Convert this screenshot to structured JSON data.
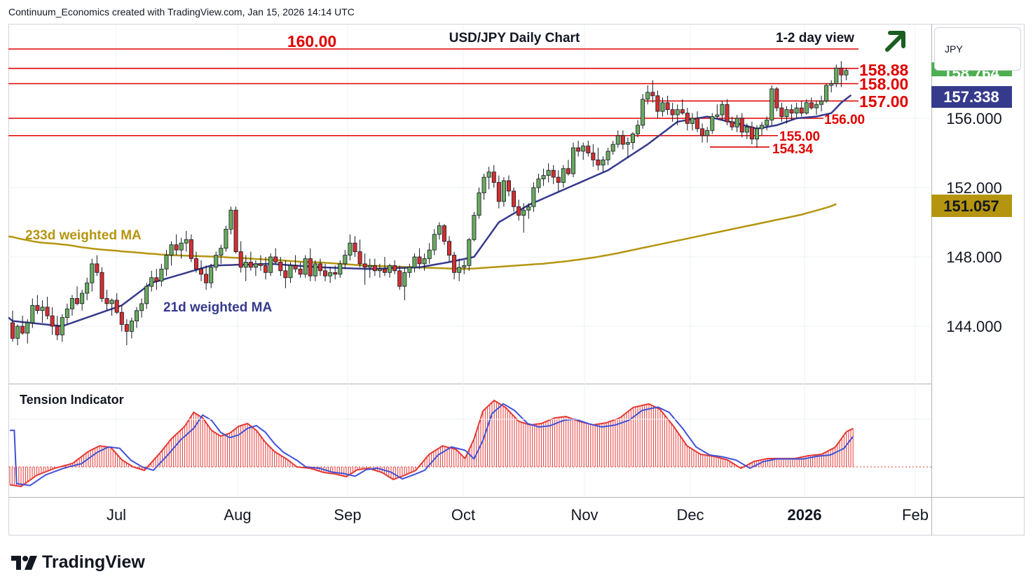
{
  "header": {
    "attribution": "Continuum_Economics created with TradingView.com, Jan 15, 2026 14:14 UTC",
    "brand": "TradingView"
  },
  "chart_data": {
    "type": "candlestick",
    "title": "USD/JPY Daily Chart",
    "subtitle": "1-2 day view",
    "currency": "JPY",
    "x_ticks": [
      "Jul",
      "Aug",
      "Sep",
      "Oct",
      "Nov",
      "Dec",
      "2026",
      "Feb"
    ],
    "y_ticks": [
      "144.000",
      "148.000",
      "152.000",
      "156.000"
    ],
    "y_range": [
      141.6,
      163.2
    ],
    "price_badges": [
      {
        "value": "158.764",
        "color": "#4caf50",
        "partially_hidden": true
      },
      {
        "value": "157.338",
        "color": "#363a8c"
      },
      {
        "value": "151.057",
        "color": "#b5950f"
      }
    ],
    "levels": [
      {
        "label": "160.00",
        "value": 160.0
      },
      {
        "label": "158.88",
        "value": 158.88
      },
      {
        "label": "158.00",
        "value": 158.0
      },
      {
        "label": "157.00",
        "value": 157.0
      },
      {
        "label": "156.00",
        "value": 156.0
      },
      {
        "label": "155.00",
        "value": 155.0
      },
      {
        "label": "154.34",
        "value": 154.34
      }
    ],
    "series": [
      {
        "name": "233d weighted MA",
        "color": "#b5950f"
      },
      {
        "name": "21d weighted MA",
        "color": "#363a8c"
      }
    ],
    "ohlc": [
      [
        144.2,
        144.9,
        143.1,
        143.3
      ],
      [
        143.3,
        144.1,
        142.9,
        144.0
      ],
      [
        144.0,
        144.6,
        143.5,
        143.6
      ],
      [
        143.6,
        144.4,
        143.0,
        144.2
      ],
      [
        144.2,
        145.6,
        143.9,
        145.2
      ],
      [
        145.2,
        145.8,
        144.7,
        144.9
      ],
      [
        144.9,
        145.5,
        144.2,
        145.1
      ],
      [
        145.1,
        145.7,
        144.4,
        144.6
      ],
      [
        144.6,
        145.1,
        143.5,
        144.0
      ],
      [
        144.0,
        144.6,
        143.2,
        143.5
      ],
      [
        143.5,
        144.7,
        143.1,
        144.5
      ],
      [
        144.5,
        145.3,
        144.1,
        145.0
      ],
      [
        145.0,
        145.8,
        144.6,
        145.6
      ],
      [
        145.6,
        146.3,
        145.2,
        145.3
      ],
      [
        145.3,
        146.1,
        144.9,
        145.9
      ],
      [
        145.9,
        146.8,
        145.5,
        146.5
      ],
      [
        146.5,
        147.9,
        146.0,
        147.6
      ],
      [
        147.6,
        148.1,
        146.9,
        147.1
      ],
      [
        147.1,
        147.4,
        145.4,
        145.6
      ],
      [
        145.6,
        146.1,
        144.9,
        145.3
      ],
      [
        145.3,
        145.6,
        144.6,
        145.5
      ],
      [
        145.5,
        145.9,
        144.7,
        144.8
      ],
      [
        144.8,
        145.2,
        143.7,
        144.1
      ],
      [
        144.1,
        144.4,
        142.9,
        143.7
      ],
      [
        143.7,
        144.5,
        143.3,
        144.3
      ],
      [
        144.3,
        145.1,
        143.9,
        144.9
      ],
      [
        144.9,
        145.6,
        144.5,
        145.3
      ],
      [
        145.3,
        146.5,
        145.0,
        146.3
      ],
      [
        146.3,
        147.2,
        146.0,
        146.8
      ],
      [
        146.8,
        147.3,
        146.1,
        146.6
      ],
      [
        146.6,
        147.6,
        146.3,
        147.3
      ],
      [
        147.3,
        148.4,
        146.9,
        148.1
      ],
      [
        148.1,
        148.9,
        147.5,
        148.7
      ],
      [
        148.7,
        149.3,
        148.1,
        148.4
      ],
      [
        148.4,
        149.1,
        147.9,
        148.8
      ],
      [
        148.8,
        149.5,
        148.3,
        149.0
      ],
      [
        149.0,
        149.3,
        147.7,
        147.9
      ],
      [
        147.9,
        148.3,
        147.1,
        147.3
      ],
      [
        147.3,
        147.8,
        146.6,
        147.0
      ],
      [
        147.0,
        147.5,
        146.1,
        146.5
      ],
      [
        146.5,
        147.6,
        146.2,
        147.4
      ],
      [
        147.4,
        148.3,
        147.2,
        148.1
      ],
      [
        148.1,
        148.7,
        147.6,
        148.5
      ],
      [
        148.5,
        149.8,
        148.3,
        149.6
      ],
      [
        149.6,
        150.9,
        149.3,
        150.7
      ],
      [
        150.7,
        150.9,
        148.2,
        148.3
      ],
      [
        148.3,
        148.9,
        147.1,
        147.4
      ],
      [
        147.4,
        148.1,
        146.6,
        147.7
      ],
      [
        147.7,
        148.3,
        147.2,
        147.4
      ],
      [
        147.4,
        147.8,
        146.9,
        147.6
      ],
      [
        147.6,
        148.1,
        147.2,
        147.5
      ],
      [
        147.5,
        148.0,
        146.7,
        147.1
      ],
      [
        147.1,
        148.2,
        146.9,
        148.0
      ],
      [
        148.0,
        148.5,
        147.6,
        147.7
      ],
      [
        147.7,
        148.0,
        146.9,
        147.2
      ],
      [
        147.2,
        147.8,
        146.2,
        146.8
      ],
      [
        146.8,
        147.7,
        146.5,
        147.5
      ],
      [
        147.5,
        148.1,
        147.1,
        147.3
      ],
      [
        147.3,
        147.7,
        146.8,
        147.0
      ],
      [
        147.0,
        148.1,
        146.8,
        147.9
      ],
      [
        147.9,
        148.5,
        146.6,
        146.9
      ],
      [
        146.9,
        147.8,
        146.6,
        147.6
      ],
      [
        147.6,
        147.9,
        146.9,
        147.2
      ],
      [
        147.2,
        147.6,
        146.6,
        146.9
      ],
      [
        146.9,
        147.4,
        146.5,
        147.1
      ],
      [
        147.1,
        147.5,
        146.7,
        147.0
      ],
      [
        147.0,
        147.8,
        146.8,
        147.6
      ],
      [
        147.6,
        148.4,
        147.3,
        148.1
      ],
      [
        148.1,
        149.3,
        147.8,
        148.8
      ],
      [
        148.8,
        149.2,
        148.0,
        148.3
      ],
      [
        148.3,
        149.0,
        147.4,
        147.6
      ],
      [
        147.6,
        148.2,
        146.4,
        147.4
      ],
      [
        147.4,
        147.9,
        146.8,
        147.5
      ],
      [
        147.5,
        147.9,
        146.9,
        147.2
      ],
      [
        147.2,
        147.6,
        146.8,
        147.3
      ],
      [
        147.3,
        148.0,
        146.9,
        147.1
      ],
      [
        147.1,
        147.6,
        146.8,
        147.5
      ],
      [
        147.5,
        147.8,
        147.0,
        147.2
      ],
      [
        147.2,
        147.5,
        146.1,
        146.3
      ],
      [
        146.3,
        147.4,
        145.5,
        147.1
      ],
      [
        147.1,
        147.6,
        146.8,
        147.4
      ],
      [
        147.4,
        148.2,
        147.1,
        148.0
      ],
      [
        148.0,
        148.5,
        147.3,
        147.6
      ],
      [
        147.6,
        148.2,
        147.2,
        147.9
      ],
      [
        147.9,
        148.8,
        147.6,
        148.4
      ],
      [
        148.4,
        149.6,
        148.1,
        149.3
      ],
      [
        149.3,
        150.0,
        149.0,
        149.8
      ],
      [
        149.8,
        149.9,
        148.7,
        148.9
      ],
      [
        148.9,
        149.2,
        147.7,
        148.1
      ],
      [
        148.1,
        148.3,
        146.7,
        147.1
      ],
      [
        147.1,
        147.9,
        146.6,
        147.4
      ],
      [
        147.4,
        147.8,
        147.0,
        147.5
      ],
      [
        147.5,
        149.1,
        147.2,
        149.0
      ],
      [
        149.0,
        150.6,
        148.9,
        150.4
      ],
      [
        150.4,
        152.0,
        150.2,
        151.7
      ],
      [
        151.7,
        152.8,
        151.3,
        152.6
      ],
      [
        152.6,
        153.2,
        151.9,
        152.9
      ],
      [
        152.9,
        153.3,
        152.0,
        152.3
      ],
      [
        152.3,
        152.7,
        150.8,
        151.2
      ],
      [
        151.2,
        152.6,
        150.9,
        152.4
      ],
      [
        152.4,
        152.7,
        151.5,
        151.8
      ],
      [
        151.8,
        152.0,
        150.6,
        150.9
      ],
      [
        150.9,
        151.3,
        150.1,
        150.4
      ],
      [
        150.4,
        151.1,
        149.4,
        150.7
      ],
      [
        150.7,
        151.1,
        150.2,
        150.9
      ],
      [
        150.9,
        152.3,
        150.6,
        152.0
      ],
      [
        152.0,
        152.8,
        151.7,
        152.5
      ],
      [
        152.5,
        153.1,
        152.1,
        152.7
      ],
      [
        152.7,
        153.4,
        152.3,
        153.0
      ],
      [
        153.0,
        153.3,
        152.2,
        152.6
      ],
      [
        152.6,
        153.0,
        151.8,
        152.3
      ],
      [
        152.3,
        153.3,
        152.0,
        153.1
      ],
      [
        153.1,
        153.6,
        152.7,
        152.8
      ],
      [
        152.8,
        154.6,
        152.6,
        154.3
      ],
      [
        154.3,
        154.7,
        153.8,
        154.1
      ],
      [
        154.1,
        154.6,
        153.6,
        154.4
      ],
      [
        154.4,
        154.7,
        153.8,
        154.0
      ],
      [
        154.0,
        154.5,
        153.2,
        153.6
      ],
      [
        153.6,
        154.3,
        153.0,
        153.3
      ],
      [
        153.3,
        153.8,
        152.9,
        153.6
      ],
      [
        153.6,
        154.3,
        153.3,
        154.1
      ],
      [
        154.1,
        154.7,
        153.9,
        154.5
      ],
      [
        154.5,
        155.3,
        154.3,
        155.0
      ],
      [
        155.0,
        155.3,
        154.2,
        154.5
      ],
      [
        154.5,
        154.9,
        153.7,
        154.6
      ],
      [
        154.6,
        155.2,
        154.2,
        155.1
      ],
      [
        155.1,
        155.9,
        154.9,
        155.6
      ],
      [
        155.6,
        157.4,
        155.4,
        157.1
      ],
      [
        157.1,
        157.9,
        156.8,
        157.5
      ],
      [
        157.5,
        158.2,
        156.9,
        157.3
      ],
      [
        157.3,
        157.6,
        156.0,
        156.4
      ],
      [
        156.4,
        157.2,
        156.1,
        156.9
      ],
      [
        156.9,
        157.3,
        156.2,
        156.5
      ],
      [
        156.5,
        156.9,
        155.8,
        156.2
      ],
      [
        156.2,
        156.8,
        155.6,
        156.5
      ],
      [
        156.5,
        157.1,
        156.2,
        156.3
      ],
      [
        156.3,
        156.6,
        155.3,
        155.7
      ],
      [
        155.7,
        156.3,
        155.3,
        156.0
      ],
      [
        156.0,
        156.4,
        155.2,
        155.4
      ],
      [
        155.4,
        155.7,
        154.6,
        155.0
      ],
      [
        155.0,
        155.5,
        154.6,
        155.3
      ],
      [
        155.3,
        156.3,
        155.1,
        156.1
      ],
      [
        156.1,
        156.8,
        156.0,
        156.2
      ],
      [
        156.2,
        157.0,
        155.9,
        156.8
      ],
      [
        156.8,
        157.1,
        155.6,
        155.8
      ],
      [
        155.8,
        156.1,
        155.3,
        155.5
      ],
      [
        155.5,
        156.2,
        155.2,
        156.0
      ],
      [
        156.0,
        156.3,
        154.9,
        155.2
      ],
      [
        155.2,
        155.7,
        154.8,
        155.5
      ],
      [
        155.5,
        155.8,
        154.5,
        154.8
      ],
      [
        154.8,
        155.6,
        154.3,
        155.4
      ],
      [
        155.4,
        155.8,
        155.0,
        155.6
      ],
      [
        155.6,
        156.1,
        155.3,
        155.9
      ],
      [
        155.9,
        157.9,
        155.6,
        157.7
      ],
      [
        157.7,
        157.8,
        156.4,
        156.6
      ],
      [
        156.6,
        156.9,
        155.8,
        156.1
      ],
      [
        156.1,
        156.7,
        155.7,
        156.5
      ],
      [
        156.5,
        156.8,
        155.9,
        156.3
      ],
      [
        156.3,
        156.9,
        156.0,
        156.6
      ],
      [
        156.6,
        157.0,
        156.1,
        156.3
      ],
      [
        156.3,
        157.1,
        156.2,
        156.9
      ],
      [
        156.9,
        157.2,
        156.5,
        156.6
      ],
      [
        156.6,
        157.0,
        156.2,
        156.8
      ],
      [
        156.8,
        157.3,
        156.4,
        157.0
      ],
      [
        157.0,
        158.0,
        156.9,
        157.9
      ],
      [
        157.9,
        158.2,
        157.5,
        158.0
      ],
      [
        158.0,
        159.1,
        157.8,
        158.9
      ],
      [
        158.9,
        159.3,
        157.8,
        158.5
      ],
      [
        158.5,
        158.9,
        158.2,
        158.76
      ]
    ],
    "ma233": [
      149.15,
      149.08,
      149.02,
      148.96,
      148.9,
      148.86,
      148.82,
      148.8,
      148.78,
      148.75,
      148.72,
      148.69,
      148.65,
      148.6,
      148.55,
      148.52,
      148.48,
      148.45,
      148.42,
      148.4,
      148.37,
      148.35,
      148.32,
      148.3,
      148.28,
      148.25,
      148.23,
      148.2,
      148.18,
      148.16,
      148.13,
      148.12,
      148.1,
      148.09,
      148.08,
      148.07,
      148.06,
      148.05,
      148.04,
      148.03,
      148.02,
      148.01,
      148.0,
      147.98,
      147.96,
      147.95,
      147.93,
      147.92,
      147.9,
      147.88,
      147.87,
      147.85,
      147.83,
      147.82,
      147.8,
      147.78,
      147.76,
      147.74,
      147.72,
      147.71,
      147.7,
      147.69,
      147.68,
      147.66,
      147.64,
      147.62,
      147.6,
      147.58,
      147.56,
      147.54,
      147.52,
      147.5,
      147.49,
      147.48,
      147.47,
      147.46,
      147.45,
      147.44,
      147.43,
      147.42,
      147.41,
      147.4,
      147.39,
      147.38,
      147.37,
      147.36,
      147.35,
      147.34,
      147.33,
      147.32,
      147.31,
      147.31,
      147.32,
      147.33,
      147.35,
      147.37,
      147.39,
      147.41,
      147.43,
      147.45,
      147.47,
      147.49,
      147.51,
      147.53,
      147.55,
      147.57,
      147.59,
      147.61,
      147.64,
      147.67,
      147.7,
      147.73,
      147.76,
      147.8,
      147.84,
      147.88,
      147.92,
      147.96,
      148.01,
      148.06,
      148.11,
      148.16,
      148.22,
      148.28,
      148.34,
      148.4,
      148.46,
      148.52,
      148.58,
      148.64,
      148.7,
      148.76,
      148.82,
      148.88,
      148.94,
      149.0,
      149.06,
      149.12,
      149.18,
      149.24,
      149.3,
      149.36,
      149.42,
      149.48,
      149.54,
      149.6,
      149.66,
      149.72,
      149.78,
      149.84,
      149.9,
      149.96,
      150.02,
      150.08,
      150.14,
      150.2,
      150.26,
      150.32,
      150.38,
      150.44,
      150.52,
      150.6,
      150.68,
      150.76,
      150.84,
      150.93,
      151.06
    ],
    "ma21_anchors": [
      [
        0,
        144.3
      ],
      [
        10,
        144.0
      ],
      [
        22,
        145.2
      ],
      [
        28,
        146.5
      ],
      [
        34,
        147.0
      ],
      [
        40,
        147.5
      ],
      [
        52,
        147.6
      ],
      [
        62,
        147.4
      ],
      [
        72,
        147.3
      ],
      [
        82,
        147.4
      ],
      [
        88,
        147.7
      ],
      [
        93,
        148.0
      ],
      [
        98,
        150.0
      ],
      [
        104,
        151.0
      ],
      [
        112,
        152.0
      ],
      [
        120,
        153.0
      ],
      [
        128,
        154.5
      ],
      [
        134,
        155.8
      ],
      [
        140,
        156.1
      ],
      [
        146,
        155.7
      ],
      [
        150,
        155.4
      ],
      [
        154,
        155.6
      ],
      [
        158,
        156.0
      ],
      [
        162,
        156.1
      ],
      [
        165,
        156.3
      ],
      [
        167,
        156.9
      ],
      [
        169,
        157.34
      ]
    ],
    "tension_label": "Tension Indicator"
  }
}
